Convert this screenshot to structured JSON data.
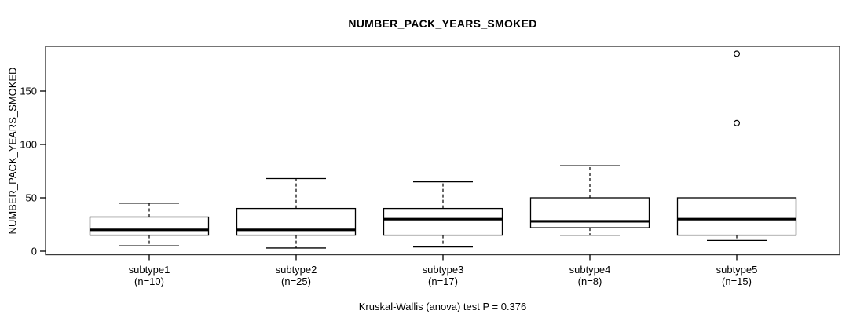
{
  "title": "NUMBER_PACK_YEARS_SMOKED",
  "y_axis_label": "NUMBER_PACK_YEARS_SMOKED",
  "footnote": "Kruskal-Wallis (anova) test P = 0.376",
  "colors": {
    "background": "#ffffff",
    "box_fill": "#ffffff",
    "line": "#000000",
    "frame": "#3a3a3a"
  },
  "chart_data": {
    "type": "boxplot",
    "title": "NUMBER_PACK_YEARS_SMOKED",
    "ylabel": "NUMBER_PACK_YEARS_SMOKED",
    "xlabel": "",
    "footnote": "Kruskal-Wallis (anova) test P = 0.376",
    "grid": false,
    "legend": "none",
    "y_ticks": [
      0,
      50,
      100,
      150
    ],
    "ylim": [
      -3,
      192
    ],
    "categories": [
      "subtype1",
      "subtype2",
      "subtype3",
      "subtype4",
      "subtype5"
    ],
    "n_labels": [
      "(n=10)",
      "(n=25)",
      "(n=17)",
      "(n=8)",
      "(n=15)"
    ],
    "sample_sizes": [
      10,
      25,
      17,
      8,
      15
    ],
    "series": [
      {
        "name": "subtype1",
        "n": 10,
        "whisker_low": 5,
        "q1": 15,
        "median": 20,
        "q3": 32,
        "whisker_high": 45,
        "outliers": []
      },
      {
        "name": "subtype2",
        "n": 25,
        "whisker_low": 3,
        "q1": 15,
        "median": 20,
        "q3": 40,
        "whisker_high": 68,
        "outliers": []
      },
      {
        "name": "subtype3",
        "n": 17,
        "whisker_low": 4,
        "q1": 15,
        "median": 30,
        "q3": 40,
        "whisker_high": 65,
        "outliers": []
      },
      {
        "name": "subtype4",
        "n": 8,
        "whisker_low": 15,
        "q1": 22,
        "median": 28,
        "q3": 50,
        "whisker_high": 80,
        "outliers": []
      },
      {
        "name": "subtype5",
        "n": 15,
        "whisker_low": 10,
        "q1": 15,
        "median": 30,
        "q3": 50,
        "whisker_high": 50,
        "outliers": [
          120,
          185
        ]
      }
    ]
  }
}
